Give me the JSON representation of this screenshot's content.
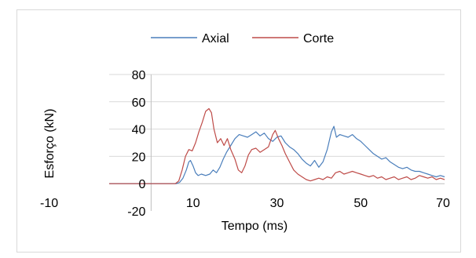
{
  "chart_data": {
    "type": "line",
    "title": "",
    "xlabel": "Tempo (ms)",
    "ylabel": "Esforço (kN)",
    "xlim": [
      -10,
      70
    ],
    "ylim": [
      -20,
      80
    ],
    "xticks": [
      -10,
      10,
      30,
      50,
      70
    ],
    "yticks": [
      -20,
      0,
      20,
      40,
      60,
      80
    ],
    "grid": "horizontal",
    "legend_position": "top",
    "series": [
      {
        "name": "Axial",
        "color": "#4a7ebb",
        "x": [
          -10,
          6,
          6.8,
          7.6,
          8.4,
          9,
          9.4,
          10,
          10.6,
          11.2,
          12,
          13,
          14,
          14.8,
          15.6,
          16.4,
          17.2,
          18,
          19,
          20,
          21,
          22,
          23,
          24,
          25,
          26,
          27,
          28,
          29,
          30,
          31,
          32,
          33,
          34,
          35,
          36,
          37,
          38,
          39,
          40,
          41,
          42,
          43,
          43.6,
          44.2,
          45,
          46,
          47,
          48,
          49,
          50,
          51,
          52,
          53,
          54,
          55,
          56,
          57,
          58,
          59,
          60,
          61,
          62,
          63,
          64,
          65,
          66,
          67,
          68,
          69,
          70
        ],
        "y": [
          0,
          0,
          1,
          4,
          10,
          16,
          17,
          13,
          8,
          6,
          7,
          6,
          7,
          10,
          8,
          12,
          18,
          23,
          28,
          33,
          36,
          35,
          34,
          36,
          38,
          35,
          37,
          33,
          31,
          34,
          35,
          30,
          27,
          25,
          22,
          18,
          15,
          13,
          17,
          12,
          16,
          25,
          38,
          42,
          34,
          36,
          35,
          34,
          36,
          33,
          31,
          28,
          25,
          22,
          20,
          18,
          19,
          16,
          14,
          12,
          11,
          12,
          10,
          9,
          9,
          8,
          7,
          6,
          5,
          6,
          5
        ]
      },
      {
        "name": "Corte",
        "color": "#be4b48",
        "x": [
          -10,
          5.8,
          6.6,
          7.4,
          8.2,
          9,
          9.8,
          10.6,
          11.4,
          12.2,
          13,
          13.8,
          14.4,
          15,
          15.8,
          16.6,
          17.4,
          18.2,
          19,
          20,
          20.8,
          21.6,
          22.4,
          23.2,
          24,
          25,
          26,
          27,
          28,
          29,
          29.6,
          30.4,
          31.2,
          32,
          33,
          34,
          35,
          36,
          37,
          38,
          39,
          40,
          41,
          42,
          43,
          44,
          45,
          46,
          47,
          48,
          49,
          50,
          51,
          52,
          53,
          54,
          55,
          56,
          57,
          58,
          59,
          60,
          61,
          62,
          63,
          64,
          65,
          66,
          67,
          68,
          69,
          70
        ],
        "y": [
          0,
          0,
          2,
          10,
          20,
          25,
          24,
          30,
          38,
          45,
          53,
          55,
          52,
          40,
          30,
          33,
          28,
          33,
          25,
          18,
          10,
          8,
          13,
          21,
          25,
          26,
          23,
          25,
          27,
          36,
          39,
          33,
          28,
          22,
          16,
          10,
          7,
          5,
          3,
          2,
          3,
          4,
          3,
          5,
          4,
          8,
          9,
          7,
          8,
          9,
          8,
          7,
          6,
          5,
          6,
          4,
          5,
          3,
          4,
          5,
          3,
          4,
          5,
          3,
          4,
          6,
          5,
          4,
          5,
          3,
          4,
          3
        ]
      }
    ]
  }
}
